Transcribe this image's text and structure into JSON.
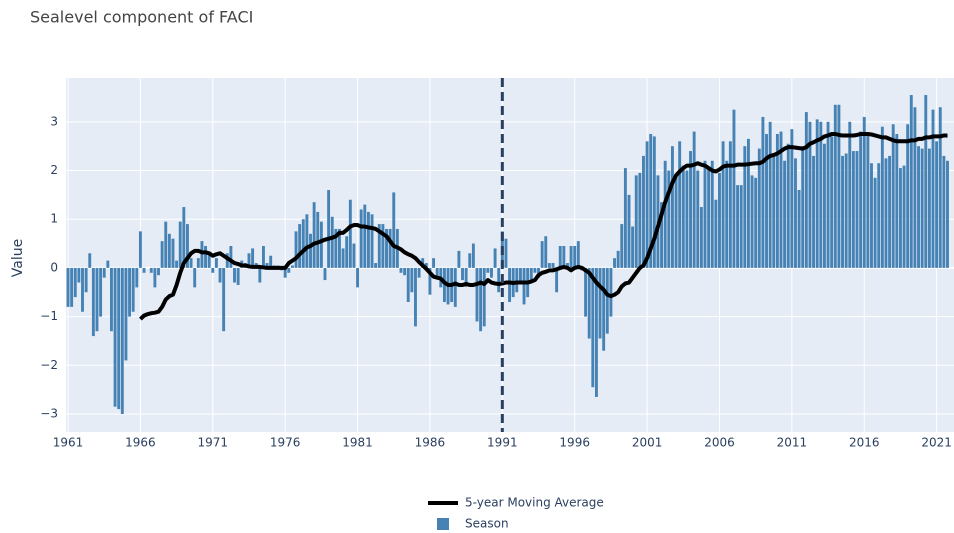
{
  "chart_data": {
    "type": "bar",
    "title": "Sealevel component of FACI",
    "y_label": "Value",
    "xlim": [
      1960.86,
      2022.2
    ],
    "ylim": [
      -3.37,
      3.9
    ],
    "xticks": [
      1961,
      1966,
      1971,
      1976,
      1981,
      1986,
      1991,
      1996,
      2001,
      2006,
      2011,
      2016,
      2021
    ],
    "yticks": [
      {
        "value": -3,
        "label": "−3"
      },
      {
        "value": -2,
        "label": "−2"
      },
      {
        "value": -1,
        "label": "−1"
      },
      0,
      1,
      2,
      3
    ],
    "grid": true,
    "vline_x": 1991,
    "vline_color": "#2a3f5f",
    "legend": "bottom",
    "x": [
      1961,
      1961.25,
      1961.5,
      1961.75,
      1962,
      1962.25,
      1962.5,
      1962.75,
      1963,
      1963.25,
      1963.5,
      1963.75,
      1964,
      1964.25,
      1964.5,
      1964.75,
      1965,
      1965.25,
      1965.5,
      1965.75,
      1966,
      1966.25,
      1966.5,
      1966.75,
      1967,
      1967.25,
      1967.5,
      1967.75,
      1968,
      1968.25,
      1968.5,
      1968.75,
      1969,
      1969.25,
      1969.5,
      1969.75,
      1970,
      1970.25,
      1970.5,
      1970.75,
      1971,
      1971.25,
      1971.5,
      1971.75,
      1972,
      1972.25,
      1972.5,
      1972.75,
      1973,
      1973.25,
      1973.5,
      1973.75,
      1974,
      1974.25,
      1974.5,
      1974.75,
      1975,
      1975.25,
      1975.5,
      1975.75,
      1976,
      1976.25,
      1976.5,
      1976.75,
      1977,
      1977.25,
      1977.5,
      1977.75,
      1978,
      1978.25,
      1978.5,
      1978.75,
      1979,
      1979.25,
      1979.5,
      1979.75,
      1980,
      1980.25,
      1980.5,
      1980.75,
      1981,
      1981.25,
      1981.5,
      1981.75,
      1982,
      1982.25,
      1982.5,
      1982.75,
      1983,
      1983.25,
      1983.5,
      1983.75,
      1984,
      1984.25,
      1984.5,
      1984.75,
      1985,
      1985.25,
      1985.5,
      1985.75,
      1986,
      1986.25,
      1986.5,
      1986.75,
      1987,
      1987.25,
      1987.5,
      1987.75,
      1988,
      1988.25,
      1988.5,
      1988.75,
      1989,
      1989.25,
      1989.5,
      1989.75,
      1990,
      1990.25,
      1990.5,
      1990.75,
      1991,
      1991.25,
      1991.5,
      1991.75,
      1992,
      1992.25,
      1992.5,
      1992.75,
      1993,
      1993.25,
      1993.5,
      1993.75,
      1994,
      1994.25,
      1994.5,
      1994.75,
      1995,
      1995.25,
      1995.5,
      1995.75,
      1996,
      1996.25,
      1996.5,
      1996.75,
      1997,
      1997.25,
      1997.5,
      1997.75,
      1998,
      1998.25,
      1998.5,
      1998.75,
      1999,
      1999.25,
      1999.5,
      1999.75,
      2000,
      2000.25,
      2000.5,
      2000.75,
      2001,
      2001.25,
      2001.5,
      2001.75,
      2002,
      2002.25,
      2002.5,
      2002.75,
      2003,
      2003.25,
      2003.5,
      2003.75,
      2004,
      2004.25,
      2004.5,
      2004.75,
      2005,
      2005.25,
      2005.5,
      2005.75,
      2006,
      2006.25,
      2006.5,
      2006.75,
      2007,
      2007.25,
      2007.5,
      2007.75,
      2008,
      2008.25,
      2008.5,
      2008.75,
      2009,
      2009.25,
      2009.5,
      2009.75,
      2010,
      2010.25,
      2010.5,
      2010.75,
      2011,
      2011.25,
      2011.5,
      2011.75,
      2012,
      2012.25,
      2012.5,
      2012.75,
      2013,
      2013.25,
      2013.5,
      2013.75,
      2014,
      2014.25,
      2014.5,
      2014.75,
      2015,
      2015.25,
      2015.5,
      2015.75,
      2016,
      2016.25,
      2016.5,
      2016.75,
      2017,
      2017.25,
      2017.5,
      2017.75,
      2018,
      2018.25,
      2018.5,
      2018.75,
      2019,
      2019.25,
      2019.5,
      2019.75,
      2020,
      2020.25,
      2020.5,
      2020.75,
      2021,
      2021.25,
      2021.5,
      2021.75
    ],
    "series": [
      {
        "name": "5-year Moving Average",
        "type": "line",
        "color": "#000000",
        "values": [
          null,
          null,
          null,
          null,
          null,
          null,
          null,
          null,
          null,
          null,
          null,
          null,
          null,
          null,
          null,
          null,
          null,
          null,
          null,
          null,
          -1.05,
          -0.98,
          -0.95,
          -0.93,
          -0.92,
          -0.9,
          -0.8,
          -0.65,
          -0.58,
          -0.55,
          -0.35,
          -0.1,
          0.1,
          0.2,
          0.3,
          0.35,
          0.35,
          0.32,
          0.32,
          0.3,
          0.25,
          0.28,
          0.3,
          0.25,
          0.2,
          0.15,
          0.1,
          0.08,
          0.05,
          0.05,
          0.03,
          0.02,
          0.02,
          0.02,
          0.01,
          0.0,
          0.0,
          0.0,
          0.0,
          0.0,
          0.0,
          0.1,
          0.15,
          0.2,
          0.28,
          0.35,
          0.42,
          0.45,
          0.5,
          0.52,
          0.55,
          0.58,
          0.6,
          0.62,
          0.65,
          0.72,
          0.72,
          0.78,
          0.85,
          0.88,
          0.88,
          0.85,
          0.85,
          0.83,
          0.82,
          0.8,
          0.75,
          0.7,
          0.65,
          0.55,
          0.45,
          0.42,
          0.38,
          0.32,
          0.28,
          0.25,
          0.2,
          0.12,
          0.05,
          -0.02,
          -0.1,
          -0.18,
          -0.2,
          -0.22,
          -0.3,
          -0.35,
          -0.35,
          -0.32,
          -0.35,
          -0.35,
          -0.33,
          -0.35,
          -0.35,
          -0.33,
          -0.3,
          -0.33,
          -0.25,
          -0.3,
          -0.32,
          -0.33,
          -0.32,
          -0.3,
          -0.3,
          -0.31,
          -0.3,
          -0.3,
          -0.3,
          -0.3,
          -0.28,
          -0.25,
          -0.15,
          -0.1,
          -0.08,
          -0.05,
          -0.05,
          -0.03,
          0.0,
          0.02,
          0.0,
          -0.05,
          0.0,
          0.02,
          0.0,
          -0.05,
          -0.1,
          -0.2,
          -0.3,
          -0.38,
          -0.45,
          -0.55,
          -0.58,
          -0.55,
          -0.5,
          -0.38,
          -0.32,
          -0.3,
          -0.2,
          -0.1,
          0.0,
          0.05,
          0.2,
          0.4,
          0.6,
          0.85,
          1.1,
          1.35,
          1.55,
          1.75,
          1.9,
          1.98,
          2.05,
          2.1,
          2.1,
          2.12,
          2.15,
          2.12,
          2.1,
          2.05,
          2.0,
          1.98,
          2.02,
          2.08,
          2.1,
          2.1,
          2.1,
          2.12,
          2.12,
          2.12,
          2.13,
          2.14,
          2.15,
          2.15,
          2.18,
          2.25,
          2.3,
          2.32,
          2.35,
          2.4,
          2.45,
          2.48,
          2.48,
          2.47,
          2.46,
          2.45,
          2.48,
          2.55,
          2.58,
          2.62,
          2.65,
          2.7,
          2.72,
          2.75,
          2.75,
          2.73,
          2.72,
          2.72,
          2.72,
          2.72,
          2.73,
          2.75,
          2.75,
          2.75,
          2.74,
          2.72,
          2.7,
          2.68,
          2.68,
          2.65,
          2.62,
          2.6,
          2.6,
          2.6,
          2.6,
          2.62,
          2.62,
          2.65,
          2.65,
          2.68,
          2.68,
          2.7,
          2.7,
          2.7,
          2.72,
          2.72
        ]
      },
      {
        "name": "Season",
        "type": "bar",
        "color": "#4682b4",
        "values": [
          -0.8,
          -0.8,
          -0.6,
          -0.3,
          -0.9,
          -0.5,
          0.3,
          -1.4,
          -1.3,
          -1.0,
          -0.2,
          0.15,
          -1.3,
          -2.85,
          -2.9,
          -3.0,
          -1.9,
          -1.0,
          -0.9,
          -0.4,
          0.75,
          -0.1,
          0,
          -0.1,
          -0.4,
          -0.15,
          0.55,
          0.95,
          0.7,
          0.6,
          0.15,
          0.95,
          1.25,
          0.9,
          0.2,
          -0.4,
          0.2,
          0.55,
          0.45,
          0.3,
          -0.1,
          0.2,
          -0.3,
          -1.3,
          0.3,
          0.45,
          -0.3,
          -0.35,
          0.15,
          0.1,
          0.3,
          0.4,
          0.1,
          -0.3,
          0.45,
          0.1,
          0.25,
          0.05,
          0.05,
          -0.05,
          -0.2,
          -0.1,
          0.05,
          0.75,
          0.9,
          1.0,
          1.1,
          0.7,
          1.35,
          1.15,
          0.95,
          -0.25,
          1.6,
          1.05,
          0.8,
          0.8,
          0.4,
          0.65,
          1.4,
          0.5,
          -0.4,
          1.2,
          1.3,
          1.15,
          1.1,
          0.1,
          0.9,
          0.9,
          0.8,
          0.8,
          1.55,
          0.8,
          -0.1,
          -0.15,
          -0.7,
          -0.5,
          -1.2,
          -0.2,
          0.2,
          0.1,
          -0.55,
          0.2,
          -0.2,
          -0.4,
          -0.7,
          -0.75,
          -0.7,
          -0.8,
          0.35,
          -0.25,
          -0.3,
          0.3,
          0.5,
          -1.1,
          -1.3,
          -1.2,
          -0.1,
          -0.2,
          0.4,
          -0.5,
          0.75,
          0.6,
          -0.7,
          -0.6,
          -0.5,
          -0.3,
          -0.75,
          -0.6,
          -0.3,
          -0.1,
          -0.2,
          0.55,
          0.65,
          0.1,
          0.1,
          -0.5,
          0.45,
          0.45,
          0.1,
          0.45,
          0.45,
          0.55,
          -0.05,
          -1.0,
          -1.45,
          -2.45,
          -2.65,
          -1.45,
          -1.7,
          -1.35,
          -1.0,
          0.2,
          0.35,
          0.9,
          2.05,
          1.5,
          0.85,
          1.9,
          1.95,
          2.3,
          2.6,
          2.75,
          2.7,
          1.9,
          1.35,
          2.2,
          2.0,
          2.5,
          1.9,
          2.6,
          2.1,
          2.0,
          2.4,
          2.8,
          2.0,
          1.25,
          2.2,
          2.05,
          2.2,
          1.4,
          1.95,
          2.6,
          2.2,
          2.6,
          3.25,
          1.7,
          1.7,
          2.5,
          2.65,
          1.9,
          1.85,
          2.45,
          3.1,
          2.75,
          3.0,
          2.3,
          2.75,
          2.8,
          2.2,
          2.55,
          2.85,
          2.25,
          1.6,
          2.5,
          3.2,
          3.0,
          2.3,
          3.05,
          3.0,
          2.55,
          3.0,
          2.7,
          3.35,
          3.35,
          2.3,
          2.35,
          3.0,
          2.4,
          2.4,
          2.8,
          3.1,
          2.75,
          2.15,
          1.85,
          2.15,
          2.9,
          2.25,
          2.3,
          2.95,
          2.75,
          2.05,
          2.1,
          2.95,
          3.55,
          3.3,
          2.5,
          2.45,
          3.55,
          2.45,
          3.25,
          2.6,
          3.3,
          2.3,
          2.2
        ]
      }
    ]
  }
}
